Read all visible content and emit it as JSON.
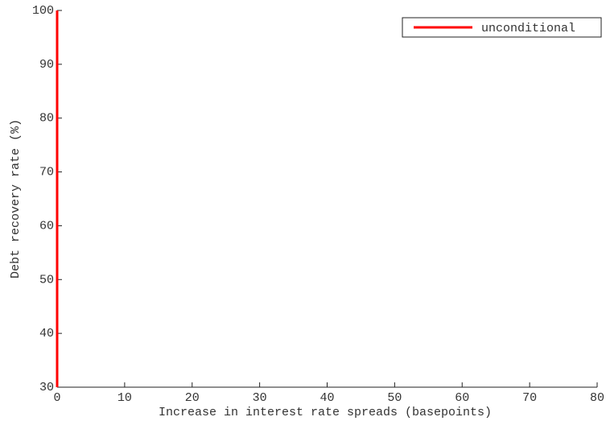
{
  "chart_data": {
    "type": "line",
    "x_label": "Increase in interest rate spreads (basepoints)",
    "y_label": "Debt recovery rate (%)",
    "x": [
      0,
      0
    ],
    "series": [
      {
        "name": "unconditional",
        "color": "#ff0000",
        "values": [
          30,
          100
        ]
      }
    ],
    "xlim": [
      0,
      80
    ],
    "xticks": [
      0,
      10,
      20,
      30,
      40,
      50,
      60,
      70,
      80
    ],
    "ylim": [
      30,
      100
    ],
    "yticks": [
      30,
      40,
      50,
      60,
      70,
      80,
      90,
      100
    ],
    "legend": "upper-right"
  }
}
